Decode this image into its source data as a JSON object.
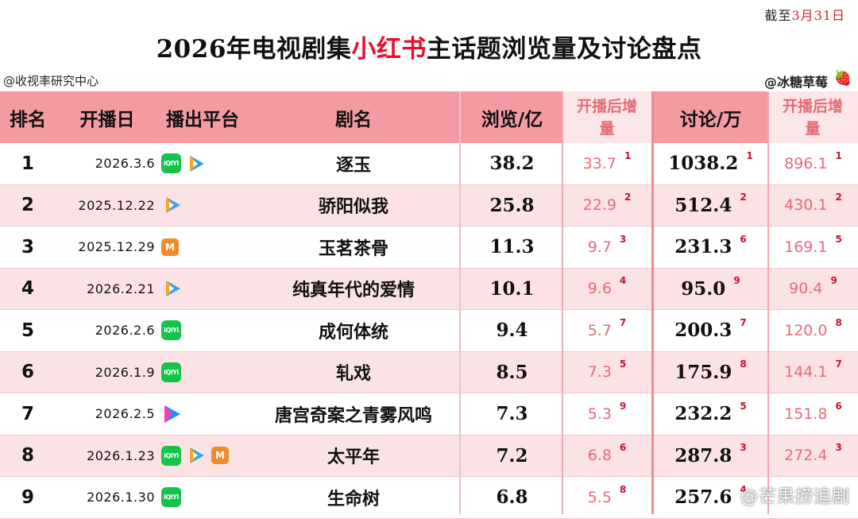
{
  "date_note": {
    "prefix": "截至",
    "date": "3月31日"
  },
  "title": {
    "part1": "2026年电视剧集",
    "highlight": "小红书",
    "part2": "主话题浏览量及讨论盘点"
  },
  "source_left": "@收视率研究中心",
  "source_right": "@冰糖草莓",
  "colors": {
    "header_bg": "#f49aa3",
    "header_inc_bg": "#fde6e8",
    "alt_row": "#fbe3e5",
    "highlight": "#e8112d",
    "increment_text": "#e56b77"
  },
  "headers": {
    "rank": "排名",
    "date": "开播日",
    "platform": "播出平台",
    "name": "剧名",
    "views": "浏览/亿",
    "views_inc": "开播后增量",
    "disc": "讨论/万",
    "disc_inc": "开播后增量"
  },
  "chart_data": {
    "type": "table",
    "columns": [
      "排名",
      "开播日",
      "播出平台",
      "剧名",
      "浏览/亿",
      "开播后增量",
      "讨论/万",
      "开播后增量"
    ],
    "rows": [
      {
        "rank": "1",
        "date": "2026.3.6",
        "platforms": [
          "iqiyi",
          "tencent"
        ],
        "name": "逐玉",
        "views": "38.2",
        "views_inc": "33.7",
        "views_inc_rank": "1",
        "disc": "1038.2",
        "disc_rank": "1",
        "disc_inc": "896.1",
        "disc_inc_rank": "1"
      },
      {
        "rank": "2",
        "date": "2025.12.22",
        "platforms": [
          "tencent"
        ],
        "name": "骄阳似我",
        "views": "25.8",
        "views_inc": "22.9",
        "views_inc_rank": "2",
        "disc": "512.4",
        "disc_rank": "2",
        "disc_inc": "430.1",
        "disc_inc_rank": "2"
      },
      {
        "rank": "3",
        "date": "2025.12.29",
        "platforms": [
          "mango"
        ],
        "name": "玉茗茶骨",
        "views": "11.3",
        "views_inc": "9.7",
        "views_inc_rank": "3",
        "disc": "231.3",
        "disc_rank": "6",
        "disc_inc": "169.1",
        "disc_inc_rank": "5"
      },
      {
        "rank": "4",
        "date": "2026.2.21",
        "platforms": [
          "tencent"
        ],
        "name": "纯真年代的爱情",
        "views": "10.1",
        "views_inc": "9.6",
        "views_inc_rank": "4",
        "disc": "95.0",
        "disc_rank": "9",
        "disc_inc": "90.4",
        "disc_inc_rank": "9"
      },
      {
        "rank": "5",
        "date": "2026.2.6",
        "platforms": [
          "iqiyi"
        ],
        "name": "成何体统",
        "views": "9.4",
        "views_inc": "5.7",
        "views_inc_rank": "7",
        "disc": "200.3",
        "disc_rank": "7",
        "disc_inc": "120.0",
        "disc_inc_rank": "8"
      },
      {
        "rank": "6",
        "date": "2026.1.9",
        "platforms": [
          "iqiyi"
        ],
        "name": "轧戏",
        "views": "8.5",
        "views_inc": "7.3",
        "views_inc_rank": "5",
        "disc": "175.9",
        "disc_rank": "8",
        "disc_inc": "144.1",
        "disc_inc_rank": "7"
      },
      {
        "rank": "7",
        "date": "2026.2.5",
        "platforms": [
          "youku"
        ],
        "name": "唐宫奇案之青雾风鸣",
        "views": "7.3",
        "views_inc": "5.3",
        "views_inc_rank": "9",
        "disc": "232.2",
        "disc_rank": "5",
        "disc_inc": "151.8",
        "disc_inc_rank": "6"
      },
      {
        "rank": "8",
        "date": "2026.1.23",
        "platforms": [
          "iqiyi",
          "tencent",
          "mango"
        ],
        "name": "太平年",
        "views": "7.2",
        "views_inc": "6.8",
        "views_inc_rank": "6",
        "disc": "287.8",
        "disc_rank": "3",
        "disc_inc": "272.4",
        "disc_inc_rank": "3"
      },
      {
        "rank": "9",
        "date": "2026.1.30",
        "platforms": [
          "iqiyi"
        ],
        "name": "生命树",
        "views": "6.8",
        "views_inc": "5.5",
        "views_inc_rank": "8",
        "disc": "257.6",
        "disc_rank": "4",
        "disc_inc": "",
        "disc_inc_rank": ""
      }
    ]
  },
  "platform_labels": {
    "iqiyi": "iQIYI",
    "tencent": "▶",
    "mango": "M",
    "youku": "▶"
  },
  "watermark": "@芒果捞追剧"
}
